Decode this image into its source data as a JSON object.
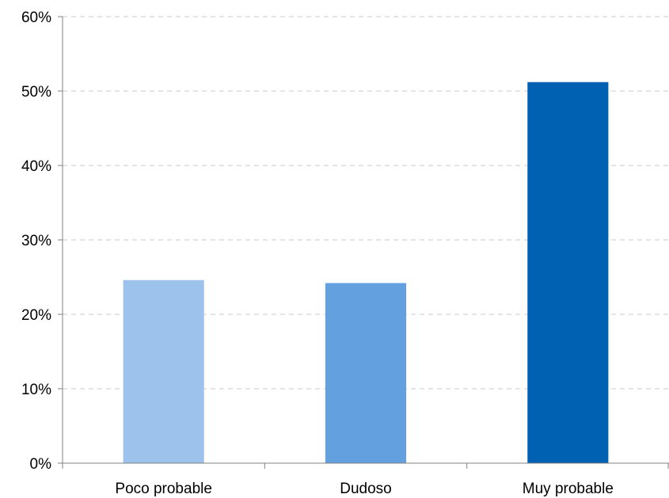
{
  "chart_data": {
    "type": "bar",
    "categories": [
      "Poco probable",
      "Dudoso",
      "Muy probable"
    ],
    "values": [
      24.6,
      24.2,
      51.2
    ],
    "colors": [
      "#9DC3EC",
      "#62A0E0",
      "#0061B3"
    ],
    "ylim": [
      0,
      60
    ],
    "yticks": [
      0,
      10,
      20,
      30,
      40,
      50,
      60
    ],
    "ytick_format": "percent",
    "grid": true,
    "grid_color": "#C8C8C8",
    "axis_color": "#808080",
    "legend": "none"
  }
}
